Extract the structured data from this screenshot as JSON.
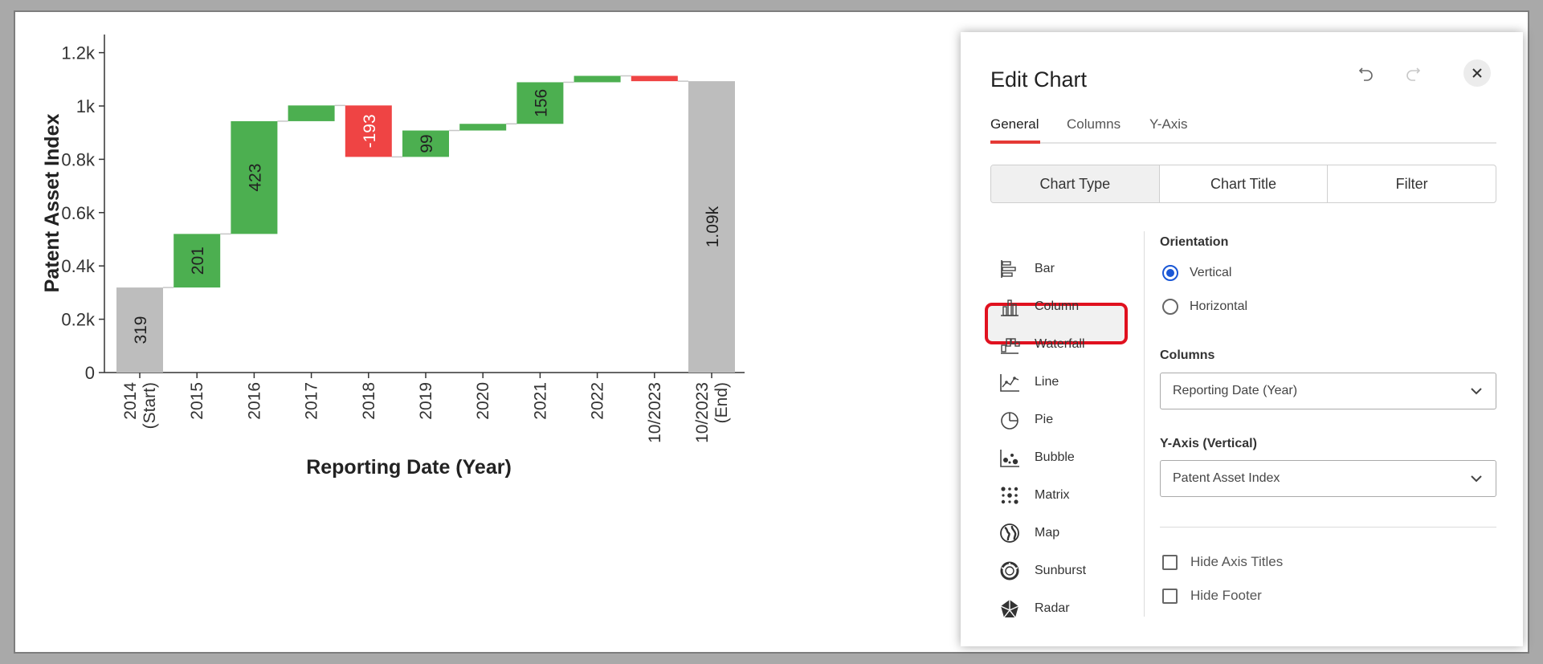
{
  "colors": {
    "increase": "#4caf50",
    "decrease": "#ef4444",
    "total": "#bdbdbd",
    "accent": "#e53935",
    "radio": "#1a57d6",
    "highlight": "#e0111f"
  },
  "chart_data": {
    "type": "waterfall",
    "title": "",
    "xlabel": "Reporting Date (Year)",
    "ylabel": "Patent Asset Index",
    "ylim": [
      0,
      1280
    ],
    "yticks": [
      {
        "value": 0,
        "label": "0"
      },
      {
        "value": 200,
        "label": "0.2k"
      },
      {
        "value": 400,
        "label": "0.4k"
      },
      {
        "value": 600,
        "label": "0.6k"
      },
      {
        "value": 800,
        "label": "0.8k"
      },
      {
        "value": 1000,
        "label": "1k"
      },
      {
        "value": 1200,
        "label": "1.2k"
      }
    ],
    "bars": [
      {
        "cat": [
          "2014",
          "(Start)"
        ],
        "kind": "total",
        "start": 0,
        "end": 319,
        "label": "319"
      },
      {
        "cat": [
          "2015"
        ],
        "kind": "increase",
        "start": 319,
        "end": 520,
        "label": "201"
      },
      {
        "cat": [
          "2016"
        ],
        "kind": "increase",
        "start": 520,
        "end": 943,
        "label": "423"
      },
      {
        "cat": [
          "2017"
        ],
        "kind": "increase",
        "start": 943,
        "end": 1002,
        "label": ""
      },
      {
        "cat": [
          "2018"
        ],
        "kind": "decrease",
        "start": 1002,
        "end": 809,
        "label": "-193"
      },
      {
        "cat": [
          "2019"
        ],
        "kind": "increase",
        "start": 809,
        "end": 908,
        "label": "99"
      },
      {
        "cat": [
          "2020"
        ],
        "kind": "increase",
        "start": 908,
        "end": 933,
        "label": ""
      },
      {
        "cat": [
          "2021"
        ],
        "kind": "increase",
        "start": 933,
        "end": 1089,
        "label": "156"
      },
      {
        "cat": [
          "2022"
        ],
        "kind": "increase",
        "start": 1089,
        "end": 1113,
        "label": ""
      },
      {
        "cat": [
          "10/2023"
        ],
        "kind": "decrease",
        "start": 1113,
        "end": 1093,
        "label": ""
      },
      {
        "cat": [
          "10/2023",
          "(End)"
        ],
        "kind": "total",
        "start": 0,
        "end": 1093,
        "label": "1.09k"
      }
    ]
  },
  "panel": {
    "title": "Edit Chart",
    "tabs": [
      "General",
      "Columns",
      "Y-Axis"
    ],
    "segments": [
      "Chart Type",
      "Chart Title",
      "Filter"
    ],
    "chart_types": [
      {
        "label": "Bar",
        "icon": "bar-chart-icon"
      },
      {
        "label": "Column",
        "icon": "column-chart-icon"
      },
      {
        "label": "Waterfall",
        "icon": "waterfall-chart-icon"
      },
      {
        "label": "Line",
        "icon": "line-chart-icon"
      },
      {
        "label": "Pie",
        "icon": "pie-chart-icon"
      },
      {
        "label": "Bubble",
        "icon": "bubble-chart-icon"
      },
      {
        "label": "Matrix",
        "icon": "matrix-chart-icon"
      },
      {
        "label": "Map",
        "icon": "map-globe-icon"
      },
      {
        "label": "Sunburst",
        "icon": "sunburst-chart-icon"
      },
      {
        "label": "Radar",
        "icon": "radar-chart-icon"
      }
    ],
    "orientation_label": "Orientation",
    "orientation_options": [
      "Vertical",
      "Horizontal"
    ],
    "orientation_selected": "Vertical",
    "columns_label": "Columns",
    "columns_value": "Reporting Date (Year)",
    "yaxis_label": "Y-Axis (Vertical)",
    "yaxis_value": "Patent Asset Index",
    "checkboxes": [
      "Hide Axis Titles",
      "Hide Footer"
    ]
  }
}
